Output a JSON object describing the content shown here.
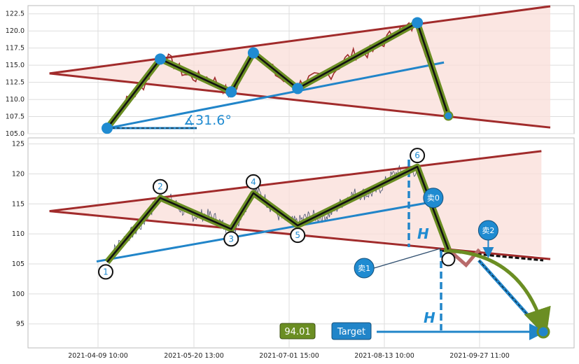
{
  "chart_data": [
    {
      "type": "line",
      "panel": "top",
      "ylim": [
        105.0,
        123.7
      ],
      "y_ticks": [
        "105.0",
        "107.5",
        "110.0",
        "112.5",
        "115.0",
        "117.5",
        "120.0",
        "122.5"
      ],
      "grid": true,
      "pivot_points": [
        {
          "t": 0.0,
          "y": 105.8
        },
        {
          "t": 0.12,
          "y": 115.9
        },
        {
          "t": 0.28,
          "y": 111.1
        },
        {
          "t": 0.33,
          "y": 116.8
        },
        {
          "t": 0.43,
          "y": 111.6
        },
        {
          "t": 0.7,
          "y": 121.2
        },
        {
          "t": 0.77,
          "y": 107.6
        }
      ],
      "channel_upper": [
        {
          "t": -0.13,
          "y": 113.8
        },
        {
          "t": 1.0,
          "y": 123.6
        }
      ],
      "channel_lower": [
        {
          "t": -0.13,
          "y": 113.8
        },
        {
          "t": 1.0,
          "y": 105.9
        }
      ],
      "support_line": [
        {
          "t": 0.0,
          "y": 105.8
        },
        {
          "t": 0.76,
          "y": 115.4
        }
      ],
      "angle_label": "∡31.6°",
      "colors": {
        "channel": "#a12b2b",
        "fill": "#f9ddd8",
        "price": "#9e2a2a",
        "zigzag": "#6b8e23",
        "support": "#2185c9",
        "marker": "#1f8bd1"
      }
    },
    {
      "type": "line",
      "panel": "bottom",
      "ylim": [
        91.0,
        126.0
      ],
      "y_ticks": [
        "95",
        "100",
        "105",
        "110",
        "115",
        "120",
        "125"
      ],
      "x_ticks": [
        "2021-04-09 10:00",
        "2021-05-20 13:00",
        "2021-07-01 15:00",
        "2021-08-13 10:00",
        "2021-09-27 11:00"
      ],
      "grid": true,
      "pivot_points": [
        {
          "label": "1",
          "t": 0.0,
          "y": 105.3
        },
        {
          "label": "2",
          "t": 0.12,
          "y": 116.0
        },
        {
          "label": "3",
          "t": 0.28,
          "y": 110.8
        },
        {
          "label": "4",
          "t": 0.33,
          "y": 116.8
        },
        {
          "label": "5",
          "t": 0.43,
          "y": 111.4
        },
        {
          "label": "6",
          "t": 0.7,
          "y": 121.2
        },
        {
          "label": "",
          "t": 0.77,
          "y": 107.4
        }
      ],
      "projection_path": [
        {
          "t": 0.77,
          "y": 107.4
        },
        {
          "t": 0.81,
          "y": 104.8
        },
        {
          "t": 0.84,
          "y": 107.4
        },
        {
          "t": 1.0,
          "y": 93.9
        }
      ],
      "markers": [
        {
          "label": "卖0",
          "t": 0.736,
          "y": 116.0
        },
        {
          "label": "卖1",
          "t": 0.58,
          "y": 104.3
        },
        {
          "label": "卖2",
          "t": 0.86,
          "y": 110.6
        }
      ],
      "h_label": "H",
      "target_value": "94.01",
      "target_label": "Target",
      "colors": {
        "channel": "#a12b2b",
        "fill": "#f9ddd8",
        "price": "#4a5470",
        "zigzag": "#6b8e23",
        "support": "#2185c9",
        "marker": "#1f8bd1",
        "target_box": "#6b8e23",
        "target_button": "#2185c9"
      }
    }
  ]
}
